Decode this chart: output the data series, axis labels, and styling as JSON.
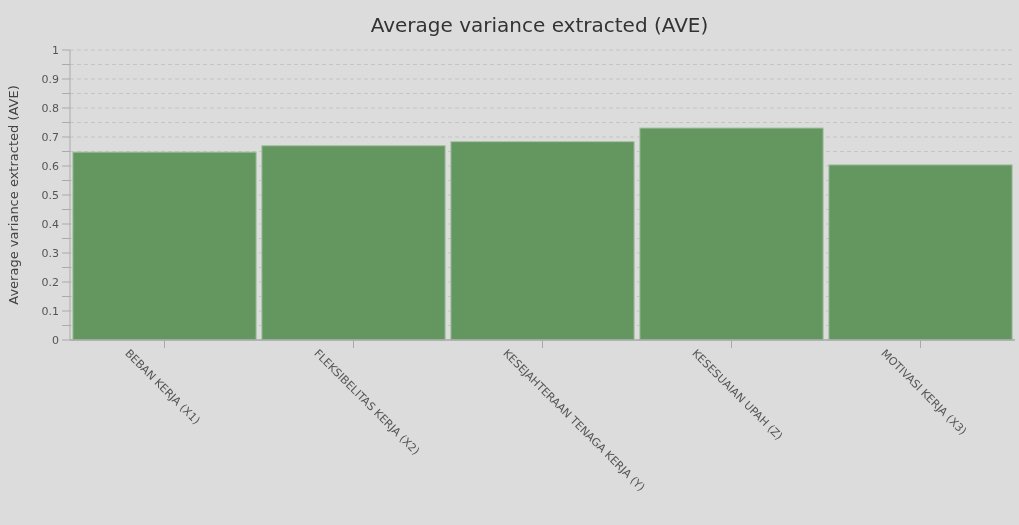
{
  "chart_data": {
    "type": "bar",
    "title": "Average variance extracted (AVE)",
    "ylabel": "Average variance extracted (AVE)",
    "categories": [
      "BEBAN KERJA (X1)",
      "FLEKSIBELITAS KERJA (X2)",
      "KESEJAHTERAAN TENAGA KERJA (Y)",
      "KESESUAIAN UPAH (Z)",
      "MOTIVASI KERJA (X3)"
    ],
    "values": [
      0.648,
      0.67,
      0.684,
      0.731,
      0.604
    ],
    "color": "#64965f",
    "ylim": [
      0,
      1
    ],
    "yticks": [
      0,
      {
        "value": 0.05,
        "label": null
      },
      0.1,
      {
        "value": 0.15,
        "label": null
      },
      0.2,
      {
        "value": 0.25,
        "label": null
      },
      0.3,
      {
        "value": 0.35,
        "label": null
      },
      0.4,
      {
        "value": 0.45,
        "label": null
      },
      0.5,
      {
        "value": 0.55,
        "label": null
      },
      0.6,
      {
        "value": 0.65,
        "label": null
      },
      0.7,
      {
        "value": 0.75,
        "label": null
      },
      0.8,
      {
        "value": 0.85,
        "label": null
      },
      0.9,
      {
        "value": 0.95,
        "label": null
      },
      1
    ],
    "grid": "y"
  }
}
